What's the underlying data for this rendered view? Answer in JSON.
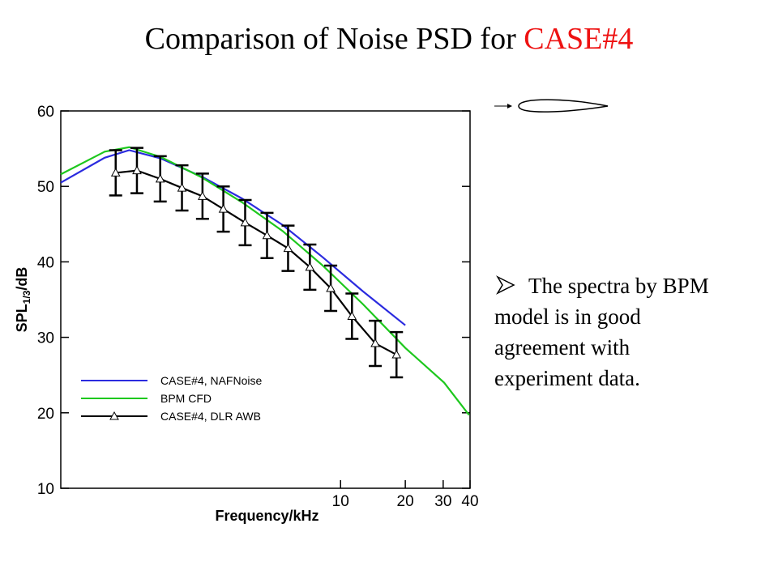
{
  "title": "Comparison of Noise PSD for ",
  "title_highlight": "CASE#4",
  "bullet_lines": [
    "The spectra by BPM",
    "model is in good",
    "agreement with",
    "experiment data."
  ],
  "chart_data": {
    "type": "line",
    "xlabel": "Frequency/kHz",
    "ylabel_main": "SPL",
    "ylabel_sub": "1/3",
    "ylabel_unit": "/dB",
    "xscale": "log",
    "xlim": [
      0.5,
      40
    ],
    "ylim": [
      10,
      60
    ],
    "xticks": [
      10,
      20,
      30,
      40
    ],
    "yticks": [
      10,
      20,
      30,
      40,
      50,
      60
    ],
    "legend": "lower left",
    "series": [
      {
        "name": "CASE#4, NAFNoise",
        "color": "#2b2bdf",
        "x": [
          0.5,
          0.8,
          1.04,
          1.46,
          2.26,
          3.48,
          5.37,
          8.27,
          12.7,
          20
        ],
        "values": [
          50.5,
          53.8,
          54.8,
          53.7,
          51.3,
          48.4,
          44.9,
          40.6,
          36.1,
          31.6
        ]
      },
      {
        "name": "BPM CFD",
        "color": "#1ec81e",
        "x": [
          0.5,
          0.8,
          1.04,
          1.46,
          2.26,
          3.48,
          5.37,
          8.27,
          12.7,
          20,
          30.3,
          39.6
        ],
        "values": [
          51.6,
          54.6,
          55.2,
          53.9,
          51.2,
          47.9,
          44.1,
          39.5,
          34.4,
          28.6,
          24.0,
          19.7
        ]
      },
      {
        "name": "CASE#4, DLR AWB",
        "color": "#000000",
        "marker": "triangle",
        "x": [
          0.9,
          1.13,
          1.45,
          1.83,
          2.28,
          2.85,
          3.6,
          4.55,
          5.7,
          7.2,
          9,
          11.3,
          14.5,
          18.2
        ],
        "values": [
          51.8,
          52.1,
          51.0,
          49.8,
          48.7,
          47.0,
          45.2,
          43.5,
          41.8,
          39.3,
          36.5,
          32.8,
          29.2,
          27.7
        ],
        "errors": [
          3,
          3,
          3,
          3,
          3,
          3,
          3,
          3,
          3,
          3,
          3,
          3,
          3,
          3
        ]
      }
    ]
  }
}
